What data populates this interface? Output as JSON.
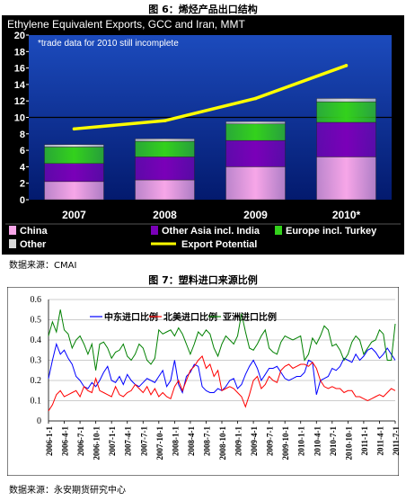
{
  "figure6": {
    "caption": "图 6：烯烃产品出口结构",
    "source": "数据来源：CMAI"
  },
  "figure7": {
    "caption": "图 7：塑料进口来源比例",
    "source": "数据来源：永安期货研究中心"
  },
  "colors": {
    "panel_bg": "#000000",
    "plot_bg_top": "#1c4bbd",
    "plot_bg_bottom": "#031a6e",
    "china": "#f7a6e8",
    "other_asia": "#7a00b8",
    "europe": "#33d11c",
    "other": "#d9d9d9",
    "export_potential": "#ffff00",
    "middle_east": "#0000ff",
    "north_america": "#ff0000",
    "asia": "#008000"
  },
  "chart_data": [
    {
      "type": "bar",
      "stacked": true,
      "title": "Ethylene Equivalent Exports, GCC and Iran, MMT",
      "annotation": "*trade data for 2010 still incomplete",
      "categories": [
        "2007",
        "2008",
        "2009",
        "2010*"
      ],
      "ylim": [
        0,
        20
      ],
      "yticks": [
        0,
        2,
        4,
        6,
        8,
        10,
        12,
        14,
        16,
        18,
        20
      ],
      "series": [
        {
          "name": "China",
          "values": [
            2.2,
            2.4,
            4.0,
            5.2
          ]
        },
        {
          "name": "Other Asia incl. India",
          "values": [
            2.2,
            2.8,
            3.2,
            4.2
          ]
        },
        {
          "name": "Europe incl. Turkey",
          "values": [
            2.0,
            1.9,
            2.0,
            2.5
          ]
        },
        {
          "name": "Other",
          "values": [
            0.3,
            0.3,
            0.3,
            0.4
          ]
        }
      ],
      "line": {
        "name": "Export Potential",
        "values": [
          8.6,
          9.6,
          12.3,
          16.3
        ]
      },
      "legend": [
        "China",
        "Other Asia incl. India",
        "Europe incl. Turkey",
        "Other",
        "Export Potential"
      ]
    },
    {
      "type": "line",
      "ylim": [
        0,
        0.6
      ],
      "yticks": [
        "0",
        "0.1",
        "0.2",
        "0.3",
        "0.4",
        "0.5",
        "0.6"
      ],
      "x_ticks": [
        "2006-1-1",
        "2006-4-1",
        "2006-7-1",
        "2006-10-1",
        "2007-1-1",
        "2007-4-1",
        "2007-7-1",
        "2007-10-1",
        "2008-1-1",
        "2008-4-1",
        "2008-7-1",
        "2008-10-1",
        "2009-1-1",
        "2009-4-1",
        "2009-7-1",
        "2009-10-1",
        "2010-1-1",
        "2010-4-1",
        "2010-7-1",
        "2010-10-1",
        "2011-1-1",
        "2011-4-1",
        "2011-7-1"
      ],
      "grid": true,
      "legend_position": "top-center",
      "series": [
        {
          "name": "中东进口比例",
          "values": [
            0.21,
            0.3,
            0.38,
            0.33,
            0.35,
            0.31,
            0.28,
            0.22,
            0.2,
            0.17,
            0.16,
            0.19,
            0.17,
            0.2,
            0.24,
            0.27,
            0.2,
            0.19,
            0.22,
            0.18,
            0.23,
            0.2,
            0.18,
            0.17,
            0.19,
            0.21,
            0.2,
            0.19,
            0.22,
            0.25,
            0.17,
            0.2,
            0.3,
            0.18,
            0.14,
            0.22,
            0.24,
            0.28,
            0.27,
            0.17,
            0.15,
            0.14,
            0.14,
            0.16,
            0.15,
            0.17,
            0.2,
            0.21,
            0.16,
            0.18,
            0.23,
            0.27,
            0.3,
            0.26,
            0.2,
            0.23,
            0.26,
            0.26,
            0.27,
            0.24,
            0.21,
            0.2,
            0.21,
            0.22,
            0.22,
            0.24,
            0.3,
            0.29,
            0.13,
            0.2,
            0.21,
            0.22,
            0.26,
            0.25,
            0.27,
            0.31,
            0.3,
            0.29,
            0.33,
            0.3,
            0.32,
            0.35,
            0.36,
            0.34,
            0.31,
            0.33,
            0.36,
            0.33,
            0.3
          ]
        },
        {
          "name": "北美进口比例",
          "values": [
            0.05,
            0.08,
            0.13,
            0.15,
            0.12,
            0.13,
            0.14,
            0.15,
            0.12,
            0.17,
            0.15,
            0.14,
            0.21,
            0.15,
            0.14,
            0.13,
            0.12,
            0.17,
            0.13,
            0.12,
            0.14,
            0.15,
            0.18,
            0.16,
            0.14,
            0.17,
            0.13,
            0.16,
            0.12,
            0.14,
            0.12,
            0.11,
            0.17,
            0.2,
            0.15,
            0.2,
            0.25,
            0.27,
            0.3,
            0.32,
            0.26,
            0.28,
            0.22,
            0.25,
            0.15,
            0.16,
            0.17,
            0.16,
            0.14,
            0.12,
            0.07,
            0.13,
            0.2,
            0.22,
            0.16,
            0.18,
            0.22,
            0.2,
            0.19,
            0.25,
            0.27,
            0.28,
            0.26,
            0.27,
            0.28,
            0.28,
            0.27,
            0.29,
            0.26,
            0.2,
            0.17,
            0.16,
            0.17,
            0.16,
            0.16,
            0.14,
            0.15,
            0.15,
            0.12,
            0.12,
            0.11,
            0.1,
            0.11,
            0.12,
            0.13,
            0.12,
            0.14,
            0.16,
            0.15
          ]
        },
        {
          "name": "亚洲进口比例",
          "values": [
            0.42,
            0.49,
            0.44,
            0.55,
            0.45,
            0.43,
            0.36,
            0.4,
            0.42,
            0.38,
            0.33,
            0.38,
            0.25,
            0.38,
            0.39,
            0.36,
            0.31,
            0.34,
            0.35,
            0.38,
            0.32,
            0.3,
            0.33,
            0.38,
            0.36,
            0.3,
            0.28,
            0.31,
            0.45,
            0.43,
            0.44,
            0.45,
            0.42,
            0.46,
            0.43,
            0.38,
            0.33,
            0.38,
            0.44,
            0.42,
            0.45,
            0.43,
            0.36,
            0.32,
            0.38,
            0.42,
            0.4,
            0.38,
            0.42,
            0.53,
            0.44,
            0.36,
            0.35,
            0.38,
            0.42,
            0.45,
            0.36,
            0.34,
            0.33,
            0.39,
            0.42,
            0.41,
            0.4,
            0.41,
            0.42,
            0.3,
            0.33,
            0.41,
            0.38,
            0.42,
            0.47,
            0.45,
            0.37,
            0.38,
            0.35,
            0.3,
            0.33,
            0.39,
            0.42,
            0.4,
            0.33,
            0.36,
            0.39,
            0.4,
            0.45,
            0.43,
            0.3,
            0.3,
            0.48
          ]
        }
      ]
    }
  ]
}
